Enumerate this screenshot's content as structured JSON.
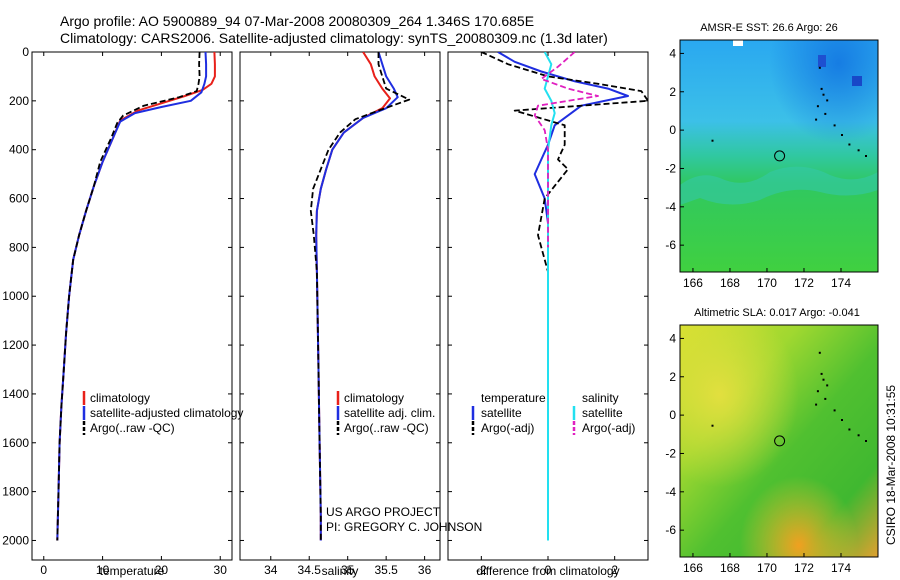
{
  "header": {
    "title_line1": "Argo profile: AO 5900889_94 07-Mar-2008 20080309_264 1.346S 170.685E",
    "title_line2": "Climatology: CARS2006. Satellite-adjusted climatology: synTS_20080309.nc (1.3d later)"
  },
  "colors": {
    "climatology": "#e8201a",
    "satellite": "#1f2ee0",
    "argo": "#000000",
    "sat_salinity": "#22e0f0",
    "argo_salinity": "#e020c0"
  },
  "footer": {
    "project": "US ARGO PROJECT",
    "pi": "PI: GREGORY C. JOHNSON",
    "credit": "CSIRO 18-Mar-2008 10:31:55"
  },
  "chart_data": [
    {
      "id": "temperature",
      "type": "line",
      "xlabel": "temperature",
      "ylabel": "",
      "xlim": [
        -2,
        32
      ],
      "ylim": [
        0,
        2080
      ],
      "y_inverted": true,
      "x_ticks": [
        0,
        10,
        20,
        30
      ],
      "x_tick_labels": [
        "0",
        "10",
        "20",
        "30"
      ],
      "y_ticks": [
        0,
        200,
        400,
        600,
        800,
        1000,
        1200,
        1400,
        1600,
        1800,
        2000
      ],
      "y_tick_labels": [
        "0",
        "200",
        "400",
        "600",
        "800",
        "1000",
        "1200",
        "1400",
        "1600",
        "1800",
        "2000"
      ],
      "legend": [
        "climatology",
        "satellite-adjusted climatology",
        "Argo(..raw -QC)"
      ],
      "series": [
        {
          "name": "climatology",
          "color": "#e8201a",
          "dash": "",
          "width": 2,
          "x": [
            29.0,
            29.1,
            29.1,
            28.5,
            27.0,
            24.0,
            20.0,
            16.0,
            13.0,
            11.8,
            10.0,
            8.5,
            7.2,
            6.0,
            5.0,
            4.3,
            3.8,
            3.4,
            3.0,
            2.7,
            2.5,
            2.3
          ],
          "y": [
            0,
            50,
            100,
            130,
            155,
            180,
            210,
            240,
            280,
            350,
            450,
            550,
            650,
            750,
            850,
            1000,
            1150,
            1300,
            1450,
            1600,
            1800,
            2000
          ]
        },
        {
          "name": "satellite-adjusted climatology",
          "color": "#1f2ee0",
          "dash": "",
          "width": 2,
          "x": [
            27.5,
            27.6,
            27.6,
            27.3,
            26.8,
            25.0,
            20.0,
            15.5,
            13.0,
            11.8,
            10.0,
            8.5,
            7.2,
            6.0,
            5.0,
            4.3,
            3.8,
            3.4,
            3.0,
            2.7,
            2.5,
            2.3
          ],
          "y": [
            0,
            50,
            100,
            130,
            165,
            200,
            225,
            250,
            285,
            350,
            450,
            550,
            650,
            750,
            850,
            1000,
            1150,
            1300,
            1450,
            1600,
            1800,
            2000
          ]
        },
        {
          "name": "Argo(..raw -QC)",
          "color": "#000000",
          "dash": "6,3",
          "width": 1.8,
          "x": [
            26.5,
            26.4,
            26.5,
            26.3,
            26.0,
            23.0,
            17.0,
            13.5,
            12.5,
            11.5,
            9.6,
            8.5,
            7.2,
            6.0,
            5.0,
            4.3,
            3.8,
            3.4,
            3.0,
            2.7,
            2.5,
            2.3
          ],
          "y": [
            0,
            50,
            100,
            130,
            160,
            185,
            220,
            260,
            290,
            350,
            450,
            550,
            650,
            750,
            850,
            1000,
            1150,
            1300,
            1450,
            1600,
            1800,
            2000
          ]
        }
      ]
    },
    {
      "id": "salinity",
      "type": "line",
      "xlabel": "salinity",
      "ylabel": "",
      "xlim": [
        33.6,
        36.2
      ],
      "ylim": [
        0,
        2080
      ],
      "y_inverted": true,
      "x_ticks": [
        34,
        34.5,
        35,
        35.5,
        36
      ],
      "x_tick_labels": [
        "34",
        "34.5",
        "35",
        "35.5",
        "36"
      ],
      "legend": [
        "climatology",
        "satellite adj. clim.",
        "Argo(..raw -QC)"
      ],
      "series": [
        {
          "name": "climatology",
          "color": "#e8201a",
          "dash": "",
          "width": 2,
          "x": [
            35.2,
            35.3,
            35.35,
            35.45,
            35.55,
            35.45,
            35.2,
            34.95,
            34.8,
            34.72,
            34.65,
            34.6,
            34.59,
            34.6,
            34.61,
            34.62,
            34.63,
            34.64,
            34.65,
            34.65
          ],
          "y": [
            0,
            50,
            100,
            150,
            190,
            230,
            270,
            330,
            400,
            480,
            560,
            650,
            750,
            900,
            1100,
            1300,
            1500,
            1700,
            1900,
            2000
          ]
        },
        {
          "name": "satellite adj. clim.",
          "color": "#1f2ee0",
          "dash": "",
          "width": 2,
          "x": [
            35.4,
            35.45,
            35.5,
            35.6,
            35.65,
            35.5,
            35.2,
            34.95,
            34.8,
            34.72,
            34.65,
            34.6,
            34.59,
            34.6,
            34.61,
            34.62,
            34.63,
            34.64,
            34.65,
            34.65
          ],
          "y": [
            0,
            50,
            100,
            150,
            185,
            230,
            270,
            330,
            400,
            480,
            560,
            650,
            750,
            900,
            1100,
            1300,
            1500,
            1700,
            1900,
            2000
          ]
        },
        {
          "name": "Argo(..raw -QC)",
          "color": "#000000",
          "dash": "6,3",
          "width": 1.8,
          "x": [
            35.4,
            35.4,
            35.45,
            35.5,
            35.8,
            35.4,
            35.1,
            34.9,
            34.75,
            34.65,
            34.55,
            34.52,
            34.56,
            34.6,
            34.61,
            34.62,
            34.63,
            34.64,
            34.65,
            34.65
          ],
          "y": [
            0,
            50,
            100,
            150,
            195,
            240,
            275,
            330,
            400,
            480,
            560,
            650,
            750,
            900,
            1100,
            1300,
            1500,
            1700,
            1900,
            2000
          ]
        }
      ]
    },
    {
      "id": "difference",
      "type": "line",
      "xlabel": "difference from climatology",
      "ylabel": "",
      "xlim": [
        -3.0,
        3.0
      ],
      "ylim": [
        0,
        2080
      ],
      "y_inverted": true,
      "x_ticks": [
        -2,
        0,
        2
      ],
      "x_tick_labels": [
        "-2",
        "0",
        "2"
      ],
      "legend": [
        "temperature",
        "satellite",
        "Argo(-adj)",
        "salinity",
        "satellite",
        "Argo(-adj)"
      ],
      "series": [
        {
          "name": "temperature satellite",
          "color": "#1f2ee0",
          "dash": "",
          "width": 2,
          "x": [
            -1.5,
            -1.0,
            -0.2,
            0.8,
            1.8,
            2.4,
            1.0,
            0.2,
            0.0,
            -0.2,
            -0.4,
            -0.1,
            0.0,
            0.0,
            0.0,
            0.0,
            0.0
          ],
          "y": [
            0,
            40,
            80,
            120,
            150,
            180,
            220,
            300,
            380,
            440,
            500,
            600,
            700,
            900,
            1200,
            1600,
            2000
          ]
        },
        {
          "name": "temperature Argo(-adj)",
          "color": "#000000",
          "dash": "6,3",
          "width": 1.8,
          "x": [
            -2.0,
            -1.2,
            0.0,
            1.5,
            2.8,
            3.0,
            -1.0,
            0.5,
            0.5,
            0.3,
            0.6,
            -0.1,
            -0.3,
            0.0,
            0.0,
            0.0,
            0.0
          ],
          "y": [
            0,
            50,
            100,
            130,
            160,
            200,
            240,
            300,
            380,
            440,
            480,
            600,
            750,
            900,
            1200,
            1600,
            2000
          ]
        },
        {
          "name": "salinity satellite",
          "color": "#22e0f0",
          "dash": "",
          "width": 2,
          "x": [
            -0.1,
            0.1,
            0.0,
            -0.1,
            0.1,
            0.2,
            0.1,
            0.0,
            0.0,
            0.0,
            0.0,
            0.0,
            0.0
          ],
          "y": [
            0,
            50,
            100,
            150,
            200,
            250,
            300,
            400,
            600,
            800,
            1200,
            1600,
            2000
          ]
        },
        {
          "name": "salinity Argo(-adj)",
          "color": "#e020c0",
          "dash": "6,3",
          "width": 1.8,
          "x": [
            0.8,
            0.3,
            -0.2,
            0.6,
            1.5,
            -0.3,
            -0.4,
            -0.1,
            0.0,
            0.0,
            0.0
          ],
          "y": [
            0,
            60,
            110,
            150,
            180,
            220,
            260,
            320,
            400,
            600,
            800
          ]
        }
      ]
    },
    {
      "id": "sst_map",
      "type": "heatmap",
      "title": "AMSR-E SST: 26.6 Argo: 26",
      "xlim": [
        165.3,
        176.0
      ],
      "ylim": [
        -7.4,
        4.7
      ],
      "x_ticks": [
        166,
        168,
        170,
        172,
        174
      ],
      "x_tick_labels": [
        "166",
        "168",
        "170",
        "172",
        "174"
      ],
      "y_ticks": [
        -6,
        -4,
        -2,
        0,
        2,
        4
      ],
      "y_tick_labels": [
        "-6",
        "-4",
        "-2",
        "0",
        "2",
        "4"
      ],
      "float_position": [
        170.685,
        -1.346
      ]
    },
    {
      "id": "sla_map",
      "type": "heatmap",
      "title": "Altimetric SLA: 0.017 Argo: -0.041",
      "xlim": [
        165.3,
        176.0
      ],
      "ylim": [
        -7.4,
        4.7
      ],
      "x_ticks": [
        166,
        168,
        170,
        172,
        174
      ],
      "x_tick_labels": [
        "166",
        "168",
        "170",
        "172",
        "174"
      ],
      "y_ticks": [
        -6,
        -4,
        -2,
        0,
        2,
        4
      ],
      "y_tick_labels": [
        "-6",
        "-4",
        "-2",
        "0",
        "2",
        "4"
      ],
      "float_position": [
        170.685,
        -1.346
      ]
    }
  ]
}
